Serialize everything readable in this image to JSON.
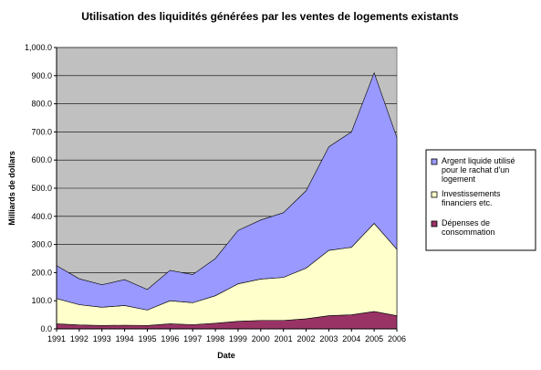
{
  "chart_data": {
    "type": "area",
    "stacked": true,
    "title": "Utilisation des liquidités générées par les ventes de logements existants",
    "xlabel": "Date",
    "ylabel": "Milliards de dollars",
    "ylim": [
      0,
      1000
    ],
    "yticks": [
      "0.0",
      "100.0",
      "200.0",
      "300.0",
      "400.0",
      "500.0",
      "600.0",
      "700.0",
      "800.0",
      "900.0",
      "1,000.0"
    ],
    "categories": [
      "1991",
      "1992",
      "1993",
      "1994",
      "1995",
      "1996",
      "1997",
      "1998",
      "1999",
      "2000",
      "2001",
      "2002",
      "2003",
      "2004",
      "2005",
      "2006"
    ],
    "grid": true,
    "legend_position": "right",
    "series": [
      {
        "name": "Dépenses de consommation",
        "color": "#993366",
        "values": [
          18,
          14,
          12,
          13,
          12,
          18,
          15,
          20,
          27,
          30,
          30,
          36,
          47,
          50,
          62,
          47
        ]
      },
      {
        "name": "Investissements financiers etc.",
        "color": "#FFFFCC",
        "values": [
          90,
          72,
          65,
          70,
          55,
          82,
          78,
          98,
          133,
          147,
          153,
          180,
          232,
          240,
          313,
          236
        ]
      },
      {
        "name": "Argent liquide utilisé pour le rachat d'un logement",
        "color": "#9999FF",
        "values": [
          117,
          92,
          80,
          92,
          73,
          108,
          100,
          132,
          190,
          210,
          230,
          275,
          368,
          410,
          535,
          397
        ]
      }
    ],
    "legend_lines": [
      [
        "Argent liquide utilisé",
        "pour le rachat d'un",
        "logement"
      ],
      [
        "Investissements",
        "financiers etc."
      ],
      [
        "Dépenses de",
        "consommation"
      ]
    ]
  }
}
